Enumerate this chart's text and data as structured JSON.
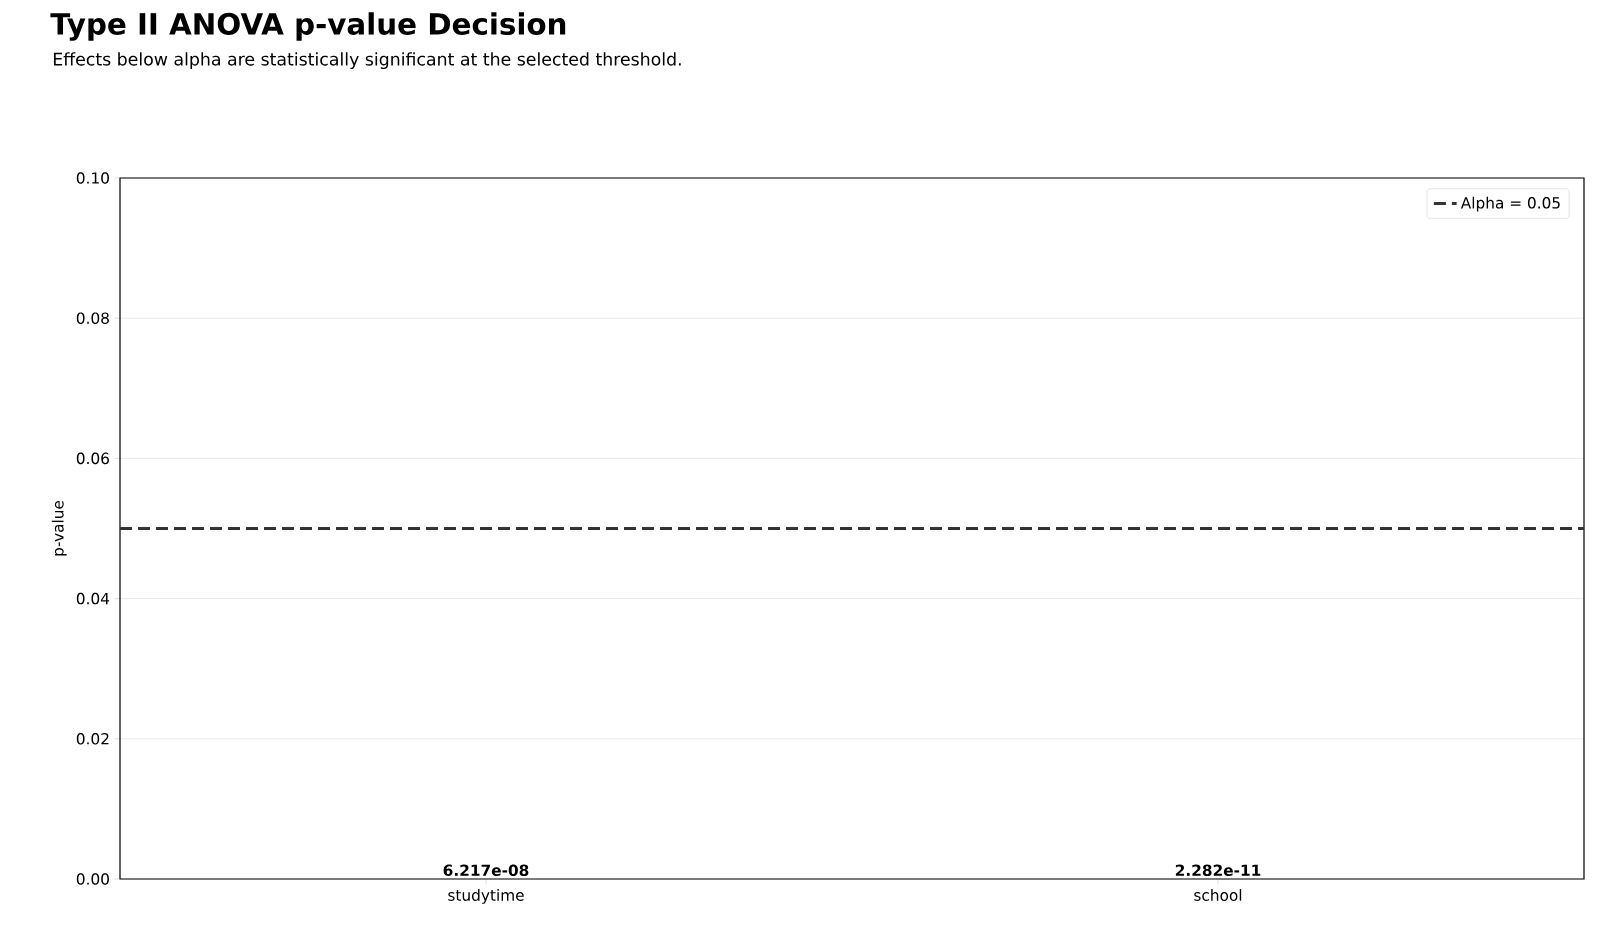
{
  "chart_data": {
    "type": "bar",
    "title": "Type II ANOVA p-value Decision",
    "subtitle": "Effects below alpha are statistically significant at the selected threshold.",
    "ylabel": "p-value",
    "categories": [
      "studytime",
      "school"
    ],
    "values": [
      6.217e-08,
      2.282e-11
    ],
    "data_labels": true,
    "ylim": [
      0,
      0.1
    ],
    "yticks": [
      {
        "value": 0,
        "label": "0.00"
      },
      {
        "value": 0.02,
        "label": "0.02"
      },
      {
        "value": 0.04,
        "label": "0.04"
      },
      {
        "value": 0.06,
        "label": "0.06"
      },
      {
        "value": 0.08,
        "label": "0.08"
      },
      {
        "value": 0.1,
        "label": "0.10"
      }
    ],
    "ref_lines": [
      {
        "axis": "y",
        "value": 0.05,
        "label": "Alpha = 0.05",
        "color": "#333333",
        "line_style": "dashed"
      }
    ],
    "grid": "y",
    "legend": "top right"
  }
}
